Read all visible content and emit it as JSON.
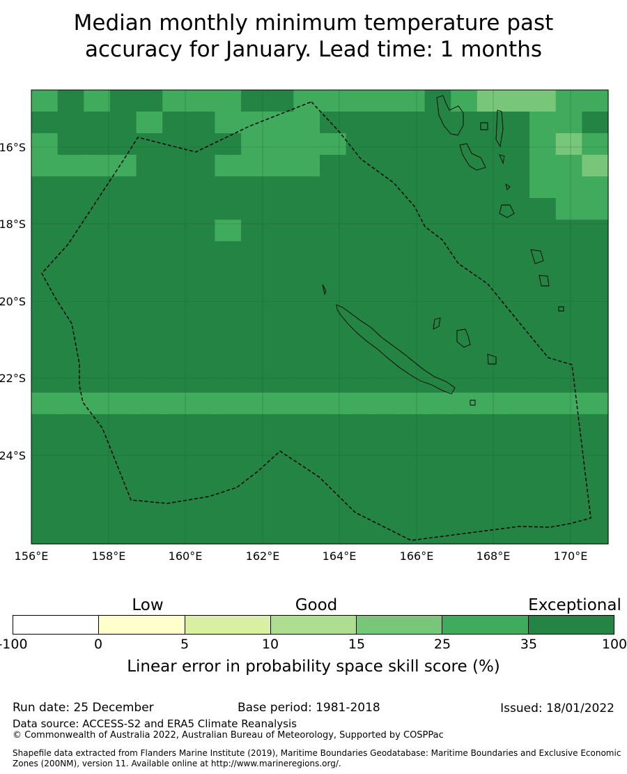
{
  "title": {
    "line1": "Median monthly minimum temperature past",
    "line2": "accuracy for January. Lead time: 1 months"
  },
  "map": {
    "longitude_labels": [
      "156°E",
      "158°E",
      "160°E",
      "162°E",
      "164°E",
      "166°E",
      "168°E",
      "170°E"
    ],
    "latitude_labels": [
      "16°S",
      "18°S",
      "20°S",
      "22°S",
      "24°S"
    ],
    "palette": {
      "c0": "#ffffff",
      "c1": "#ffffcc",
      "c2": "#d9f0a3",
      "c3": "#addd8e",
      "c4": "#78c679",
      "c5": "#41ab5d",
      "c6": "#238443"
    },
    "grid_values": [
      "5656655566555556544455",
      "6666566555566666666556",
      "5666666655556666666545",
      "5555666555566666666554",
      "6666666666666666666555",
      "6666666666666666666655",
      "6666666566666666666666",
      "6666666666666666666666",
      "6666666666666666666666",
      "6666666666666666666666",
      "6666666666666666666666",
      "6666666666666666666666",
      "6666666666666666666666",
      "6666666666666666666666",
      "5555555555555555555555",
      "6666666666666666666666",
      "6666666666666666666666",
      "6666666666666666666666",
      "6666666666666666666666",
      "6666666666666666666666",
      "6666666666666666666666"
    ]
  },
  "colorbar": {
    "category_labels": [
      "Low",
      "Good",
      "Exceptional"
    ],
    "tick_labels": [
      "-100",
      "0",
      "5",
      "10",
      "15",
      "25",
      "35",
      "100"
    ],
    "colors": [
      "#ffffff",
      "#ffffcc",
      "#d9f0a3",
      "#addd8e",
      "#78c679",
      "#41ab5d",
      "#238443"
    ],
    "title": "Linear error in probability space skill score (%)"
  },
  "footer": {
    "run_date": "Run date: 25 December",
    "base_period": "Base period: 1981-2018",
    "issued": "Issued: 18/01/2022",
    "data_source": "Data source: ACCESS-S2 and ERA5 Climate Reanalysis",
    "copyright": "© Commonwealth of Australia 2022, Australian Bureau of Meteorology, Supported by COSPPac",
    "shapefile_line1": "Shapefile data extracted from Flanders Marine Institute (2019), Maritime Boundaries Geodatabase: Maritime Boundaries and Exclusive Economic",
    "shapefile_line2": "Zones (200NM), version 11. Available online at http://www.marineregions.org/."
  }
}
